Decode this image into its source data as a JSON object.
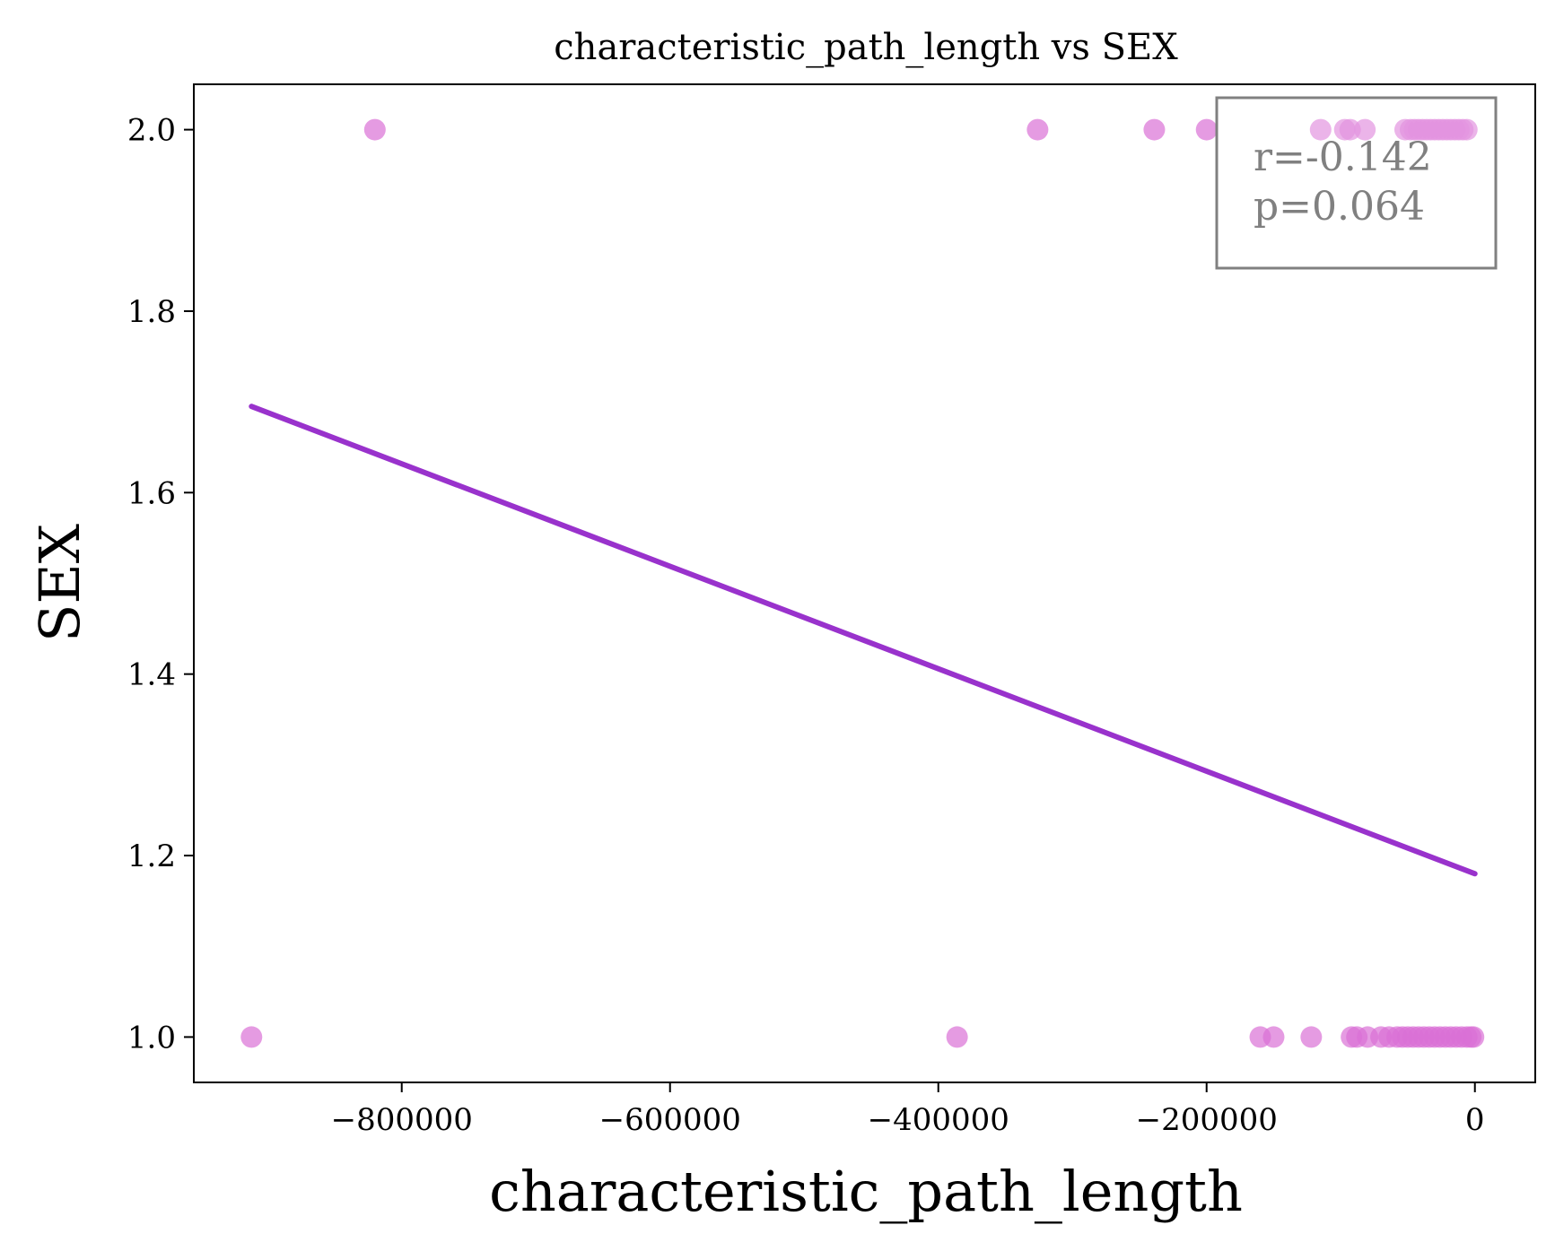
{
  "chart_data": {
    "type": "scatter",
    "title": "characteristic_path_length vs SEX",
    "xlabel": "characteristic_path_length",
    "ylabel": "SEX",
    "xlim": [
      -955000,
      45000
    ],
    "ylim": [
      0.95,
      2.05
    ],
    "x_ticks": [
      -800000,
      -600000,
      -400000,
      -200000,
      0
    ],
    "x_tick_labels": [
      "−800000",
      "−600000",
      "−400000",
      "−200000",
      "0"
    ],
    "y_ticks": [
      1.0,
      1.2,
      1.4,
      1.6,
      1.8,
      2.0
    ],
    "y_tick_labels": [
      "1.0",
      "1.2",
      "1.4",
      "1.6",
      "1.8",
      "2.0"
    ],
    "grid": false,
    "point_color": "#da70d6",
    "line_color": "#9932cc",
    "series": [
      {
        "x": [
          -820000,
          -326000,
          -239000,
          -200000,
          -115000,
          -97000,
          -93000,
          -82000,
          -52000,
          -48000,
          -45000,
          -42000,
          -39000,
          -36000,
          -33000,
          -30000,
          -27000,
          -24000,
          -21000,
          -18000,
          -15000,
          -12000,
          -9000,
          -6000
        ],
        "y": [
          2,
          2,
          2,
          2,
          2,
          2,
          2,
          2,
          2,
          2,
          2,
          2,
          2,
          2,
          2,
          2,
          2,
          2,
          2,
          2,
          2,
          2,
          2,
          2
        ]
      },
      {
        "x": [
          -912000,
          -386000,
          -160000,
          -150000,
          -122000,
          -92000,
          -88000,
          -80000,
          -70000,
          -64000,
          -58000,
          -54000,
          -50000,
          -46000,
          -42000,
          -38000,
          -34000,
          -30000,
          -26000,
          -22000,
          -18000,
          -14000,
          -10000,
          -6000,
          -3000,
          -1000
        ],
        "y": [
          1,
          1,
          1,
          1,
          1,
          1,
          1,
          1,
          1,
          1,
          1,
          1,
          1,
          1,
          1,
          1,
          1,
          1,
          1,
          1,
          1,
          1,
          1,
          1,
          1,
          1
        ]
      }
    ],
    "regression_line": {
      "x": [
        -912000,
        0
      ],
      "y": [
        1.695,
        1.18
      ]
    },
    "annotation": {
      "lines": [
        "r=-0.142",
        "p=0.064"
      ],
      "placement": "top-right"
    }
  }
}
